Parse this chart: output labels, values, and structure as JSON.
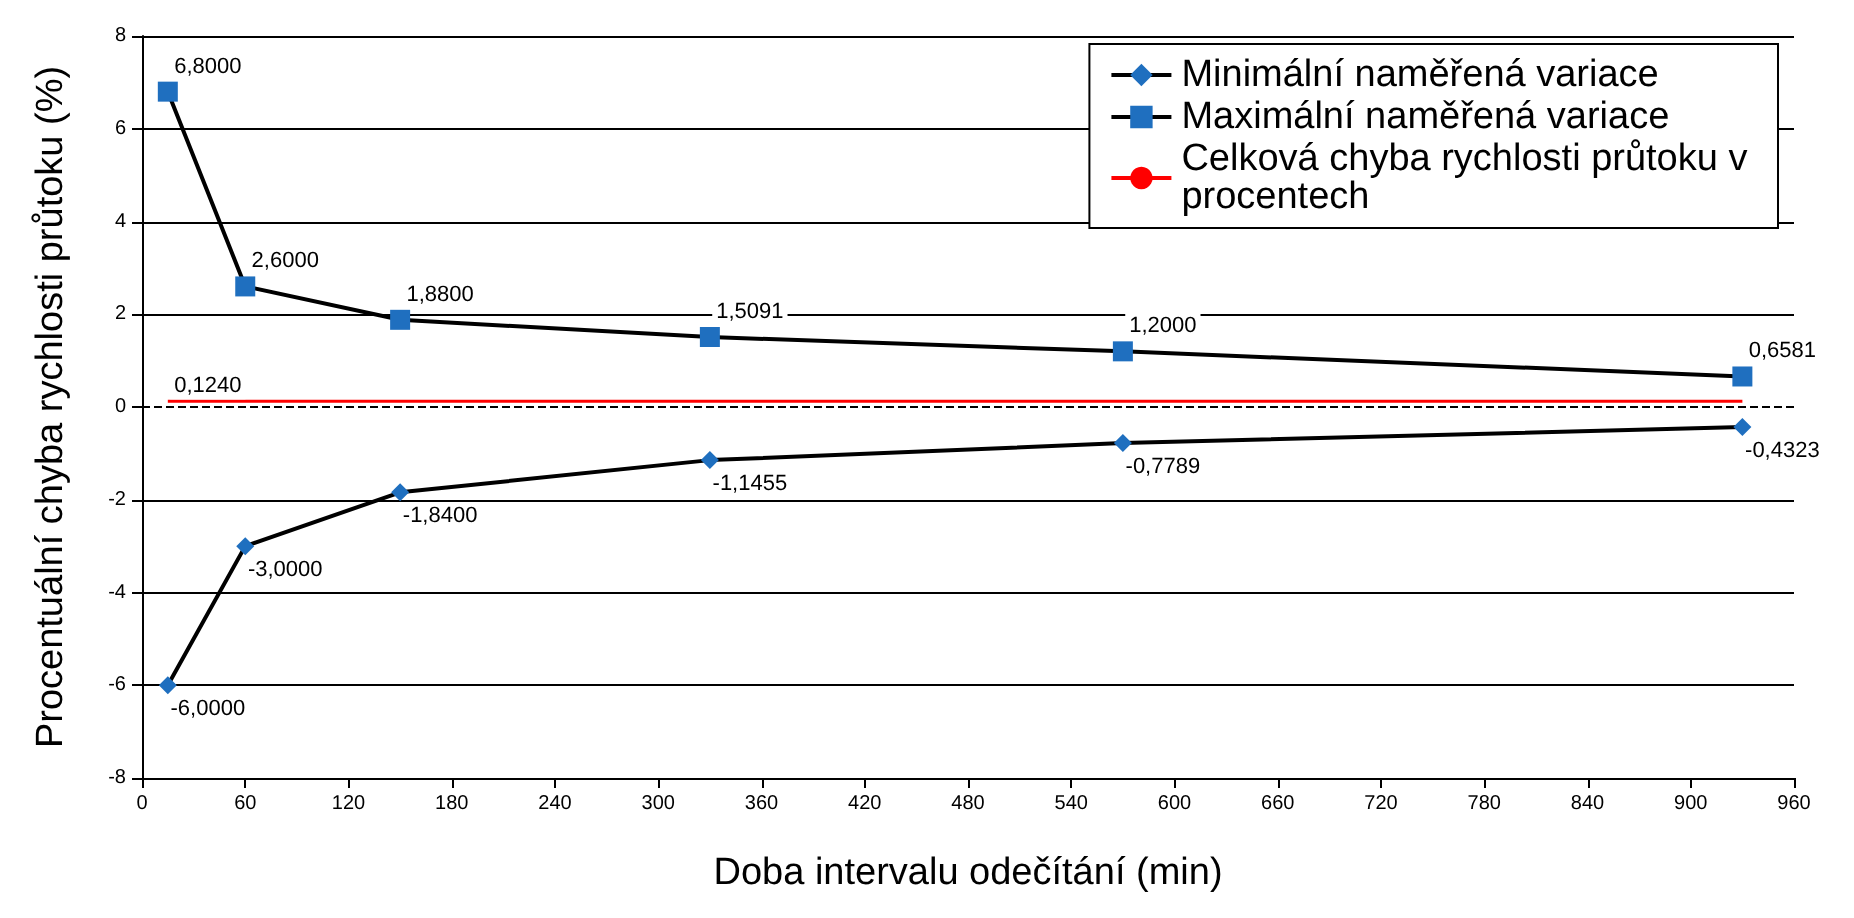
{
  "chart_data": {
    "type": "line",
    "xlabel": "Doba intervalu odečítání (min)",
    "ylabel": "Procentuální chyba rychlosti průtoku (%)",
    "xlim": [
      0,
      960
    ],
    "xticks": [
      0,
      60,
      120,
      180,
      240,
      300,
      360,
      420,
      480,
      540,
      600,
      660,
      720,
      780,
      840,
      900,
      960
    ],
    "ylim": [
      -8,
      8
    ],
    "yticks": [
      -8,
      -6,
      -4,
      -2,
      0,
      2,
      4,
      6,
      8
    ],
    "grid": "y",
    "legend": "top right",
    "series": [
      {
        "name": "Minimální naměřená variace",
        "color": "#000000",
        "colors": [
          "#1f6fbf",
          "#1f6fbf",
          "#1f6fbf",
          "#1f6fbf",
          "#1f6fbf",
          "#1f6fbf"
        ],
        "marker": "diamond",
        "x": [
          15,
          60,
          150,
          330,
          570,
          930
        ],
        "values": [
          -6,
          -3,
          -1.84,
          -1.1455,
          -0.7789,
          -0.4323
        ],
        "value_labels": [
          "-6,0000",
          "-3,0000",
          "-1,8400",
          "-1,1455",
          "-0,7789",
          "-0,4323"
        ]
      },
      {
        "name": "Maximální naměřená variace",
        "color": "#000000",
        "colors": [
          "#1f6fbf",
          "#1f6fbf",
          "#1f6fbf",
          "#1f6fbf",
          "#1f6fbf",
          "#1f6fbf"
        ],
        "marker": "square",
        "x": [
          15,
          60,
          150,
          330,
          570,
          930
        ],
        "values": [
          6.8,
          2.6,
          1.88,
          1.5091,
          1.2,
          0.6581
        ],
        "value_labels": [
          "6,8000",
          "2,6000",
          "1,8800",
          "1,5091",
          "1,2000",
          "0,6581"
        ]
      },
      {
        "name": "Celková chyba rychlosti průtoku v procentech",
        "color": "#ff0000",
        "marker": "none",
        "x": [
          15,
          930
        ],
        "values": [
          0.124,
          0.124
        ],
        "value_labels": [
          "0,1240",
          null
        ]
      }
    ],
    "ref_lines": [
      {
        "axis": "y",
        "value": 0,
        "label": null,
        "color": "#000000",
        "line_style": "dashed"
      }
    ]
  }
}
